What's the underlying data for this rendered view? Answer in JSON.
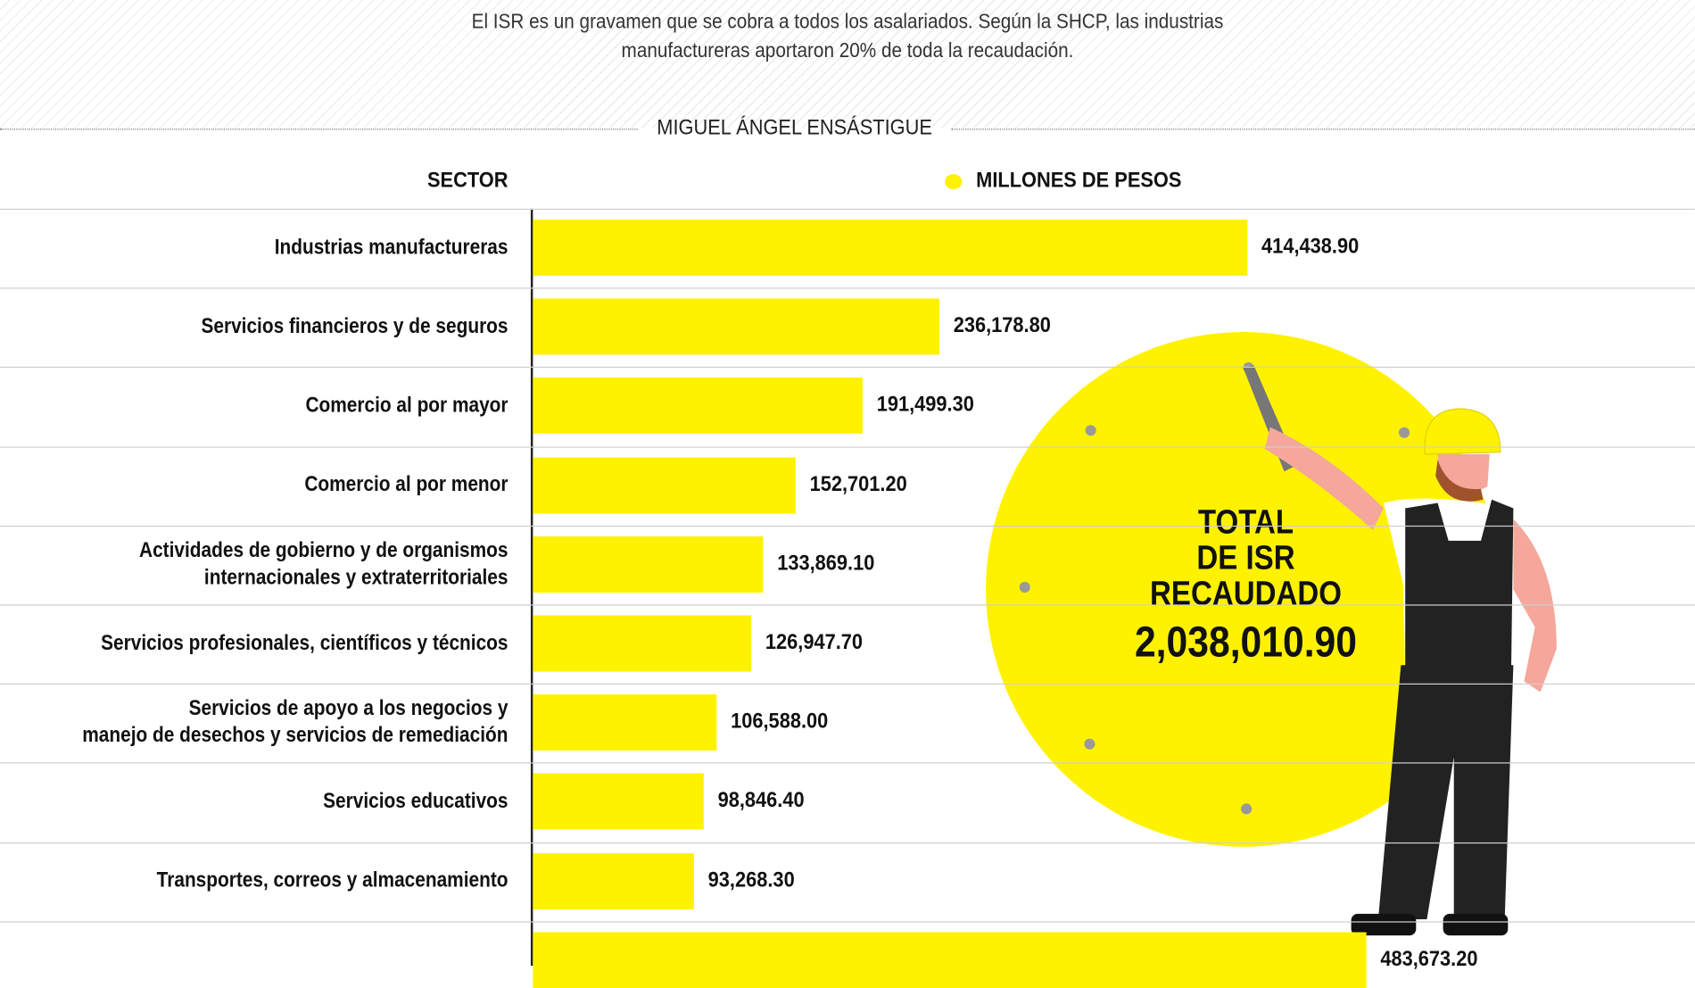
{
  "chart_data": {
    "type": "bar",
    "orientation": "horizontal",
    "subtitle": [
      "El ISR es un gravamen que se cobra a todos los asalariados. Según la SHCP, las industrias",
      "manufactureras aportaron 20% de toda la recaudación."
    ],
    "author": "MIGUEL ÁNGEL ENSÁSTIGUE",
    "category_header": "SECTOR",
    "series_name": "MILLONES DE PESOS",
    "color": "#fff200",
    "categories": [
      "Industrias manufactureras",
      "Servicios financieros y de seguros",
      "Comercio al por mayor",
      "Comercio al por menor",
      "Actividades de gobierno y de organismos\ninternacionales y extraterritoriales",
      "Servicios profesionales, científicos y técnicos",
      "Servicios de apoyo a los negocios y\nmanejo de desechos y servicios de remediación",
      "Servicios educativos",
      "Transportes, correos y almacenamiento",
      null
    ],
    "values": [
      414438.9,
      236178.8,
      191499.3,
      152701.2,
      133869.1,
      126947.7,
      106588,
      98846.4,
      93268.3,
      483673.2
    ],
    "value_labels": [
      "414,438.90",
      "236,178.80",
      "191,499.30",
      "152,701.20",
      "133,869.10",
      "126,947.70",
      "106,588.00",
      "98,846.40",
      "93,268.30",
      "483,673.20"
    ],
    "total_title": [
      "TOTAL",
      "DE ISR",
      "RECAUDADO"
    ],
    "total": {
      "value": 2038010.9,
      "label": "2,038,010.90"
    }
  }
}
